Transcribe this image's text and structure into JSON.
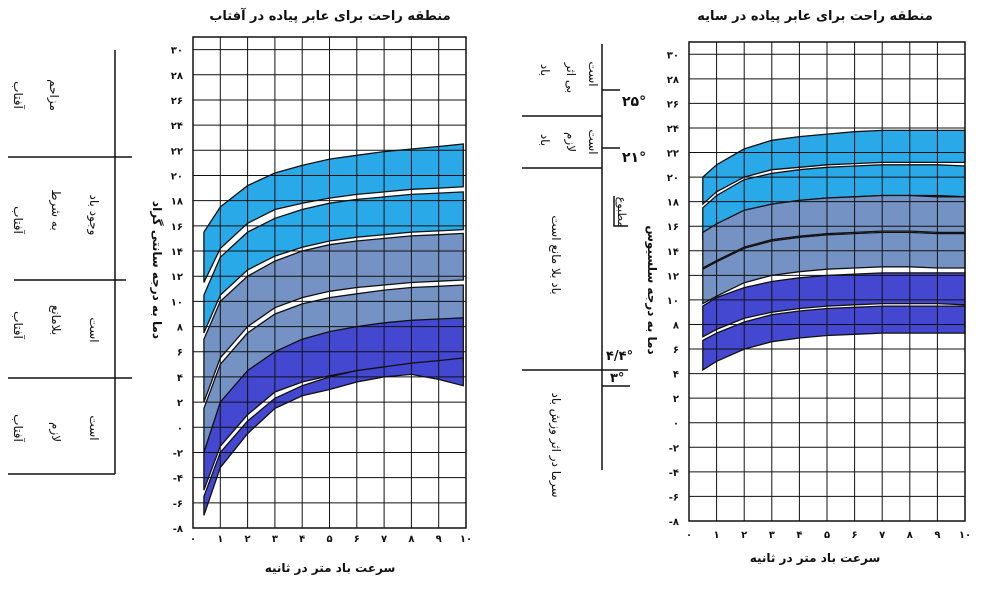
{
  "chart_data": [
    {
      "type": "area",
      "title": "منطقه راحت برای عابر پیاده در آفتاب",
      "xlabel": "سرعت باد متر در ثانیه",
      "ylabel": "دما به درجه سانتی گراد",
      "x_ticks": [
        "۰",
        "۱",
        "۲",
        "۳",
        "۴",
        "۵",
        "۶",
        "۷",
        "۸",
        "۹",
        "۱۰"
      ],
      "y_ticks": [
        "-۸",
        "-۶",
        "-۴",
        "-۲",
        "۰",
        "۲",
        "۴",
        "۶",
        "۸",
        "۱۰",
        "۱۲",
        "۱۴",
        "۱۶",
        "۱۸",
        "۲۰",
        "۲۲",
        "۲۴",
        "۲۶",
        "۲۸",
        "۳۰"
      ],
      "xlim": [
        0,
        10
      ],
      "ylim": [
        -8,
        31
      ],
      "grid": true,
      "x": [
        0.4,
        1,
        2,
        3,
        4,
        5,
        6,
        7,
        8,
        9,
        9.9
      ],
      "bands": [
        {
          "color": "#29a9e8",
          "upper": [
            15.5,
            17.5,
            19.2,
            20.2,
            20.8,
            21.3,
            21.6,
            21.9,
            22.1,
            22.3,
            22.5
          ],
          "lower": [
            11.5,
            14.2,
            16.2,
            17.3,
            17.8,
            18.2,
            18.5,
            18.7,
            18.9,
            19.0,
            19.1
          ]
        },
        {
          "color": "#29a9e8",
          "upper": [
            10.5,
            13.5,
            15.5,
            16.6,
            17.3,
            17.8,
            18.1,
            18.3,
            18.5,
            18.6,
            18.7
          ],
          "lower": [
            7.5,
            10.5,
            12.5,
            13.6,
            14.3,
            14.8,
            15.1,
            15.3,
            15.5,
            15.6,
            15.7
          ]
        },
        {
          "color": "#7592c4",
          "upper": [
            7.0,
            10.0,
            12.0,
            13.2,
            14.0,
            14.5,
            14.8,
            15.0,
            15.2,
            15.3,
            15.4
          ],
          "lower": [
            2.0,
            5.5,
            8.0,
            9.5,
            10.3,
            10.8,
            11.1,
            11.3,
            11.5,
            11.6,
            11.7
          ]
        },
        {
          "color": "#7592c4",
          "upper": [
            1.5,
            5.0,
            7.5,
            9.0,
            9.8,
            10.3,
            10.6,
            10.9,
            11.1,
            11.2,
            11.3
          ],
          "lower": [
            -2.0,
            1.5,
            4.0,
            5.5,
            6.5,
            7.1,
            7.5,
            7.7,
            7.9,
            8.0,
            8.1
          ]
        },
        {
          "color": "#4447cf",
          "upper": [
            -2.0,
            2.0,
            4.5,
            6.0,
            7.0,
            7.6,
            8.0,
            8.3,
            8.5,
            8.6,
            8.7
          ],
          "lower": [
            -5.0,
            -1.5,
            1.0,
            2.8,
            3.6,
            4.1,
            4.5,
            4.8,
            5.0,
            5.2,
            5.3
          ]
        },
        {
          "color": "#4447cf",
          "upper": [
            -5.5,
            -2.0,
            0.5,
            2.3,
            3.3,
            4.0,
            4.5,
            4.8,
            5.1,
            5.3,
            5.5
          ],
          "lower": [
            -7.0,
            -3.2,
            -0.5,
            1.5,
            2.5,
            3.0,
            3.6,
            4.0,
            4.2,
            3.8,
            3.3
          ]
        }
      ]
    },
    {
      "type": "area",
      "title": "منطقه راحت برای عابر پیاده در سایه",
      "xlabel": "سرعت باد متر در ثانیه",
      "ylabel": "دما به درجه سلسیوس",
      "x_ticks": [
        "۰",
        "۱",
        "۲",
        "۳",
        "۴",
        "۵",
        "۶",
        "۷",
        "۸",
        "۹",
        "۱۰"
      ],
      "y_ticks": [
        "-۸",
        "-۶",
        "-۴",
        "-۲",
        "۰",
        "۲",
        "۴",
        "۶",
        "۸",
        "۱۰",
        "۱۲",
        "۱۴",
        "۱۶",
        "۱۸",
        "۲۰",
        "۲۲",
        "۲۴",
        "۲۶",
        "۲۸",
        "۳۰"
      ],
      "xlim": [
        0,
        10
      ],
      "ylim": [
        -8,
        31
      ],
      "grid": true,
      "x": [
        0.5,
        1,
        2,
        3,
        4,
        5,
        6,
        7,
        8,
        9,
        10
      ],
      "bands": [
        {
          "color": "#29a9e8",
          "upper": [
            20.0,
            21.0,
            22.3,
            23.0,
            23.3,
            23.5,
            23.7,
            23.8,
            23.8,
            23.8,
            23.8
          ],
          "lower": [
            17.8,
            18.8,
            20.0,
            20.6,
            20.8,
            21.0,
            21.1,
            21.2,
            21.2,
            21.2,
            21.2
          ]
        },
        {
          "color": "#29a9e8",
          "upper": [
            17.5,
            18.5,
            19.8,
            20.3,
            20.6,
            20.8,
            20.9,
            21.0,
            21.0,
            21.0,
            20.9
          ],
          "lower": [
            15.0,
            16.0,
            17.2,
            17.8,
            18.1,
            18.3,
            18.4,
            18.5,
            18.5,
            18.5,
            18.4
          ]
        },
        {
          "color": "#7592c4",
          "upper": [
            15.5,
            16.2,
            17.3,
            17.8,
            18.1,
            18.3,
            18.4,
            18.5,
            18.5,
            18.4,
            18.4
          ],
          "lower": [
            12.6,
            13.2,
            14.3,
            14.9,
            15.2,
            15.4,
            15.5,
            15.6,
            15.6,
            15.5,
            15.5
          ]
        },
        {
          "color": "#7592c4",
          "upper": [
            12.5,
            13.1,
            14.2,
            14.8,
            15.1,
            15.3,
            15.4,
            15.5,
            15.5,
            15.4,
            15.4
          ],
          "lower": [
            9.7,
            10.3,
            11.4,
            12.0,
            12.3,
            12.5,
            12.6,
            12.7,
            12.7,
            12.6,
            12.6
          ]
        },
        {
          "color": "#4447cf",
          "upper": [
            9.5,
            10.2,
            11.0,
            11.5,
            11.8,
            12.0,
            12.1,
            12.2,
            12.2,
            12.2,
            12.2
          ],
          "lower": [
            7.0,
            7.6,
            8.5,
            9.0,
            9.3,
            9.5,
            9.6,
            9.7,
            9.7,
            9.7,
            9.6
          ]
        },
        {
          "color": "#4447cf",
          "upper": [
            6.7,
            7.3,
            8.2,
            8.8,
            9.1,
            9.3,
            9.4,
            9.5,
            9.5,
            9.5,
            9.5
          ],
          "lower": [
            4.3,
            5.0,
            6.0,
            6.6,
            6.9,
            7.1,
            7.2,
            7.3,
            7.3,
            7.3,
            7.3
          ]
        }
      ]
    }
  ],
  "left_labels": [
    [
      "آفتاب",
      "مزاحم"
    ],
    [
      "آفتاب",
      "به شرط",
      "وجود باد"
    ],
    [
      "آفتاب",
      "بلامانع",
      "است"
    ],
    [
      "آفتاب",
      "لازم",
      "است"
    ]
  ],
  "middle_labels": {
    "zone1": [
      "باد",
      "بی اثر",
      "است"
    ],
    "zone2": [
      "باد",
      "لازم",
      "است"
    ],
    "zone3": "باد بلا مانع است",
    "zone4": "سرما در اثر وزش باد",
    "mark_25": "۲۵°",
    "mark_21": "۲۱°",
    "mark_44": "۴/۴°",
    "mark_30": "۳°",
    "matbu": "مطبوع"
  }
}
